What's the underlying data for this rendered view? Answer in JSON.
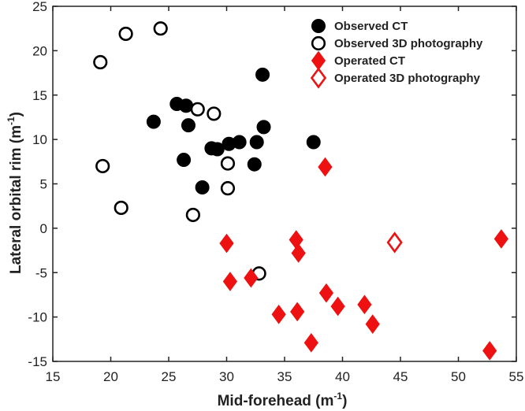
{
  "chart_data": {
    "type": "scatter",
    "title": "",
    "xlabel": "Mid-forehead (m",
    "xlabel_sup": "-1",
    "xlabel_end": ")",
    "ylabel": "Lateral orbital rim (m",
    "ylabel_sup": "-1",
    "ylabel_end": ")",
    "xlim": [
      15,
      55
    ],
    "ylim": [
      -15,
      25
    ],
    "xticks": [
      15,
      20,
      25,
      30,
      35,
      40,
      45,
      50,
      55
    ],
    "yticks": [
      -15,
      -10,
      -5,
      0,
      5,
      10,
      15,
      20,
      25
    ],
    "grid": false,
    "legend_position": "top-right",
    "series": [
      {
        "name": "Observed CT",
        "marker": "circle",
        "filled": true,
        "color": "#000000",
        "points": [
          [
            23.7,
            12.0
          ],
          [
            25.7,
            14.0
          ],
          [
            26.5,
            13.8
          ],
          [
            26.7,
            11.6
          ],
          [
            26.3,
            7.7
          ],
          [
            27.9,
            4.6
          ],
          [
            28.7,
            9.0
          ],
          [
            29.2,
            8.9
          ],
          [
            30.2,
            9.5
          ],
          [
            31.1,
            9.7
          ],
          [
            32.4,
            7.2
          ],
          [
            32.6,
            9.7
          ],
          [
            33.2,
            11.4
          ],
          [
            33.1,
            17.3
          ],
          [
            37.5,
            9.7
          ]
        ]
      },
      {
        "name": "Observed 3D photography",
        "marker": "circle",
        "filled": false,
        "color": "#000000",
        "points": [
          [
            19.1,
            18.7
          ],
          [
            21.3,
            21.9
          ],
          [
            24.3,
            22.5
          ],
          [
            19.3,
            7.0
          ],
          [
            20.9,
            2.3
          ],
          [
            27.5,
            13.4
          ],
          [
            28.9,
            12.9
          ],
          [
            27.1,
            1.5
          ],
          [
            30.1,
            7.3
          ],
          [
            30.1,
            4.5
          ],
          [
            32.8,
            -5.1
          ]
        ]
      },
      {
        "name": "Operated CT",
        "marker": "diamond",
        "filled": true,
        "color": "#ee1111",
        "points": [
          [
            30.0,
            -1.7
          ],
          [
            30.3,
            -6.0
          ],
          [
            32.1,
            -5.6
          ],
          [
            34.5,
            -9.7
          ],
          [
            36.0,
            -1.3
          ],
          [
            36.2,
            -2.8
          ],
          [
            36.1,
            -9.4
          ],
          [
            37.3,
            -12.9
          ],
          [
            38.5,
            6.9
          ],
          [
            38.6,
            -7.3
          ],
          [
            39.6,
            -8.8
          ],
          [
            41.9,
            -8.6
          ],
          [
            42.6,
            -10.8
          ],
          [
            52.7,
            -13.8
          ],
          [
            53.7,
            -1.2
          ]
        ]
      },
      {
        "name": "Operated 3D photography",
        "marker": "diamond",
        "filled": false,
        "color": "#ee1111",
        "points": [
          [
            44.5,
            -1.6
          ]
        ]
      }
    ]
  }
}
